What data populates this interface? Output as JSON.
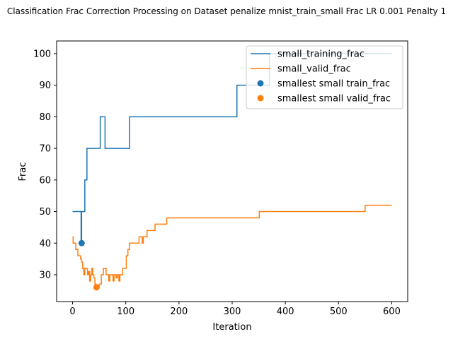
{
  "chart_data": {
    "type": "line",
    "title": "Classification Frac Correction Processing on Dataset penalize mnist_train_small Frac LR 0.001 Penalty 1",
    "xlabel": "Iteration",
    "ylabel": "Frac",
    "xlim": [
      -30,
      630
    ],
    "ylim": [
      21.5,
      104
    ],
    "xticks": [
      "0",
      "100",
      "200",
      "300",
      "400",
      "500",
      "600"
    ],
    "yticks": [
      "30",
      "40",
      "50",
      "60",
      "70",
      "80",
      "90",
      "100"
    ],
    "legend_position": "top-right",
    "grid": false,
    "series": [
      {
        "name": "small_training_frac",
        "color": "#1f77b4",
        "points": [
          [
            0,
            50
          ],
          [
            16,
            50
          ],
          [
            16,
            40
          ],
          [
            17,
            40
          ],
          [
            17,
            50
          ],
          [
            23,
            50
          ],
          [
            23,
            60
          ],
          [
            27,
            60
          ],
          [
            27,
            70
          ],
          [
            52,
            70
          ],
          [
            52,
            80
          ],
          [
            61,
            80
          ],
          [
            61,
            70
          ],
          [
            107,
            70
          ],
          [
            107,
            80
          ],
          [
            309,
            80
          ],
          [
            309,
            90
          ],
          [
            370,
            90
          ],
          [
            370,
            100
          ],
          [
            600,
            100
          ]
        ]
      },
      {
        "name": "small_valid_frac",
        "color": "#ff7f0e",
        "points": [
          [
            0,
            42
          ],
          [
            1,
            42
          ],
          [
            1,
            40
          ],
          [
            6,
            40
          ],
          [
            6,
            38
          ],
          [
            10,
            38
          ],
          [
            10,
            36
          ],
          [
            15,
            36
          ],
          [
            15,
            35
          ],
          [
            17,
            35
          ],
          [
            17,
            34
          ],
          [
            19,
            34
          ],
          [
            19,
            32
          ],
          [
            21,
            32
          ],
          [
            21,
            30
          ],
          [
            23,
            30
          ],
          [
            23,
            32
          ],
          [
            28,
            32
          ],
          [
            28,
            30
          ],
          [
            30,
            30
          ],
          [
            30,
            31
          ],
          [
            32,
            31
          ],
          [
            32,
            28
          ],
          [
            34,
            28
          ],
          [
            34,
            30
          ],
          [
            36,
            30
          ],
          [
            36,
            32
          ],
          [
            38,
            32
          ],
          [
            38,
            30
          ],
          [
            40,
            30
          ],
          [
            40,
            29
          ],
          [
            42,
            29
          ],
          [
            42,
            27
          ],
          [
            44,
            27
          ],
          [
            44,
            26
          ],
          [
            50,
            26
          ],
          [
            50,
            27
          ],
          [
            54,
            27
          ],
          [
            54,
            30
          ],
          [
            58,
            30
          ],
          [
            58,
            32
          ],
          [
            63,
            32
          ],
          [
            63,
            30
          ],
          [
            68,
            30
          ],
          [
            68,
            28
          ],
          [
            70,
            28
          ],
          [
            70,
            30
          ],
          [
            76,
            30
          ],
          [
            76,
            28
          ],
          [
            78,
            28
          ],
          [
            78,
            30
          ],
          [
            82,
            30
          ],
          [
            82,
            29
          ],
          [
            84,
            29
          ],
          [
            84,
            30
          ],
          [
            87,
            30
          ],
          [
            87,
            28
          ],
          [
            89,
            28
          ],
          [
            89,
            30
          ],
          [
            94,
            30
          ],
          [
            94,
            32
          ],
          [
            101,
            32
          ],
          [
            101,
            36
          ],
          [
            104,
            36
          ],
          [
            104,
            38
          ],
          [
            107,
            38
          ],
          [
            107,
            40
          ],
          [
            125,
            40
          ],
          [
            125,
            42
          ],
          [
            131,
            42
          ],
          [
            131,
            40
          ],
          [
            133,
            40
          ],
          [
            133,
            42
          ],
          [
            140,
            42
          ],
          [
            140,
            44
          ],
          [
            155,
            44
          ],
          [
            155,
            46
          ],
          [
            177,
            46
          ],
          [
            177,
            48
          ],
          [
            351,
            48
          ],
          [
            351,
            50
          ],
          [
            550,
            50
          ],
          [
            550,
            52
          ],
          [
            600,
            52
          ]
        ]
      }
    ],
    "markers": [
      {
        "name": "smallest small train_frac",
        "color": "#1f77b4",
        "x": 17,
        "y": 40
      },
      {
        "name": "smallest small valid_frac",
        "color": "#ff7f0e",
        "x": 45,
        "y": 26
      }
    ]
  }
}
